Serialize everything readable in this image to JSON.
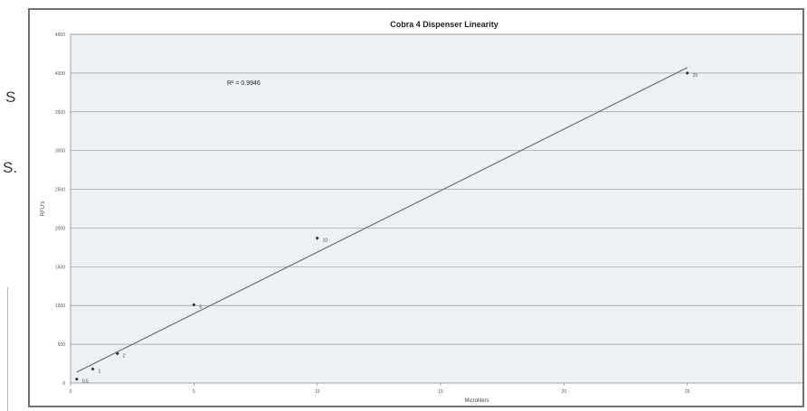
{
  "page_fragments": [
    "S",
    "S."
  ],
  "chart_data": {
    "type": "scatter",
    "title": "Cobra 4 Dispenser Linearity",
    "xlabel": "Microliters",
    "ylabel": "RFU's",
    "xlim": [
      0,
      30
    ],
    "ylim": [
      0,
      4500
    ],
    "x_ticks": [
      "0",
      "5",
      "10",
      "15",
      "20",
      "25",
      "30"
    ],
    "y_ticks": [
      "0",
      "500",
      "1000",
      "1500",
      "2000",
      "2500",
      "3000",
      "3500",
      "4000",
      "4500"
    ],
    "grid": true,
    "legend": "none",
    "annotation": "R² = 0.9946",
    "series": [
      {
        "points": [
          {
            "x": 0.25,
            "y": 50,
            "label": "0.5"
          },
          {
            "x": 0.9,
            "y": 180,
            "label": "1"
          },
          {
            "x": 1.9,
            "y": 380,
            "label": "2"
          },
          {
            "x": 5.0,
            "y": 1010,
            "label": "5"
          },
          {
            "x": 10.0,
            "y": 1870,
            "label": "10"
          },
          {
            "x": 25.0,
            "y": 4000,
            "label": "25"
          }
        ]
      }
    ],
    "trendline": {
      "type": "linear",
      "x": [
        0.25,
        25.0
      ],
      "y": [
        140,
        4070
      ]
    },
    "colors": {
      "frame": "#707070",
      "plot_bg": "#eef1f4",
      "grid": "#9a9a9a",
      "line": "#666666",
      "marker": "#333333",
      "text": "#222222"
    }
  }
}
